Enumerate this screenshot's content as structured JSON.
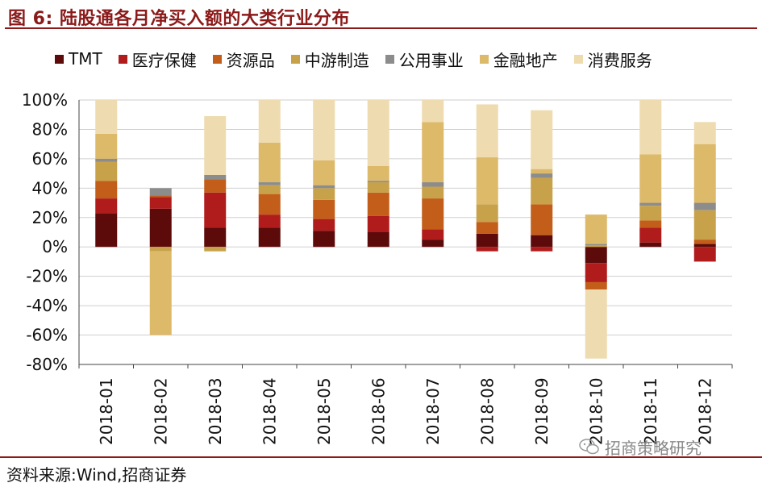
{
  "title": "图 6:  陆股通各月净买入额的大类行业分布",
  "source": "资料来源:Wind,招商证券",
  "watermark": "招商策略研究",
  "chart_data": {
    "type": "bar",
    "stacked": true,
    "categories": [
      "2018-01",
      "2018-02",
      "2018-03",
      "2018-04",
      "2018-05",
      "2018-06",
      "2018-07",
      "2018-08",
      "2018-09",
      "2018-10",
      "2018-11",
      "2018-12"
    ],
    "ylim": [
      -80,
      100
    ],
    "yticks": [
      -80,
      -60,
      -40,
      -20,
      0,
      20,
      40,
      60,
      80,
      100
    ],
    "ytick_labels": [
      "-80%",
      "-60%",
      "-40%",
      "-20%",
      "0%",
      "20%",
      "40%",
      "60%",
      "80%",
      "100%"
    ],
    "grid": true,
    "legend_position": "top",
    "series": [
      {
        "name": "TMT",
        "color": "#5C0A0A",
        "values": [
          23,
          26,
          13,
          13,
          11,
          10,
          5,
          9,
          8,
          -11,
          3,
          2
        ]
      },
      {
        "name": "医疗保健",
        "color": "#B01C1C",
        "values": [
          10,
          8,
          24,
          9,
          8,
          11,
          7,
          -3,
          -3,
          -13,
          10,
          -10
        ]
      },
      {
        "name": "资源品",
        "color": "#C25E1A",
        "values": [
          12,
          1,
          9,
          14,
          13,
          16,
          21,
          8,
          21,
          -5,
          5,
          3
        ]
      },
      {
        "name": "中游制造",
        "color": "#C8A24B",
        "values": [
          13,
          -3,
          -3,
          6,
          8,
          7,
          8,
          12,
          18,
          1,
          10,
          20
        ]
      },
      {
        "name": "公用事业",
        "color": "#8C8C8C",
        "values": [
          2,
          5,
          3,
          2,
          2,
          1,
          3,
          0,
          3,
          1,
          2,
          5
        ]
      },
      {
        "name": "金融地产",
        "color": "#DDB96A",
        "values": [
          17,
          -57,
          0,
          27,
          17,
          10,
          41,
          32,
          3,
          20,
          33,
          40
        ]
      },
      {
        "name": "消费服务",
        "color": "#EEDCB0",
        "values": [
          23,
          0,
          40,
          29,
          41,
          45,
          15,
          36,
          40,
          -47,
          37,
          15
        ]
      }
    ]
  }
}
